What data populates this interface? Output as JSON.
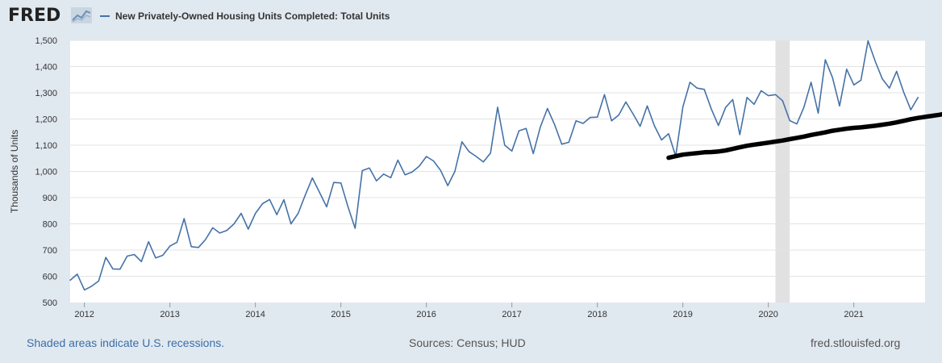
{
  "header": {
    "logo_text": "FRED",
    "legend_label": "New Privately-Owned Housing Units Completed: Total Units"
  },
  "footer": {
    "recession_note": "Shaded areas indicate U.S. recessions.",
    "sources": "Sources: Census; HUD",
    "site": "fred.stlouisfed.org"
  },
  "chart_data": {
    "type": "line",
    "ylabel": "Thousands of Units",
    "ylim": [
      500,
      1500
    ],
    "y_ticks": [
      500,
      600,
      700,
      800,
      900,
      1000,
      1100,
      1200,
      1300,
      1400,
      1500
    ],
    "y_tick_labels": [
      "500",
      "600",
      "700",
      "800",
      "900",
      "1,000",
      "1,100",
      "1,200",
      "1,300",
      "1,400",
      "1,500"
    ],
    "x_range": [
      "2011-11",
      "2021-11"
    ],
    "x_ticks": [
      "2012",
      "2013",
      "2014",
      "2015",
      "2016",
      "2017",
      "2018",
      "2019",
      "2020",
      "2021"
    ],
    "grid": true,
    "recessions": [
      {
        "start": "2020-02",
        "end": "2020-04"
      }
    ],
    "series": [
      {
        "name": "New Privately-Owned Housing Units Completed: Total Units",
        "color": "#4572a7",
        "start": "2011-11",
        "frequency": "monthly",
        "values": [
          585,
          608,
          548,
          562,
          582,
          672,
          628,
          627,
          677,
          683,
          656,
          732,
          670,
          680,
          715,
          730,
          820,
          713,
          710,
          740,
          785,
          765,
          775,
          800,
          840,
          780,
          840,
          877,
          893,
          835,
          892,
          800,
          840,
          910,
          975,
          920,
          865,
          958,
          956,
          865,
          783,
          1003,
          1013,
          964,
          990,
          976,
          1043,
          987,
          998,
          1020,
          1057,
          1040,
          1004,
          946,
          1000,
          1113,
          1075,
          1057,
          1036,
          1070,
          1245,
          1100,
          1078,
          1155,
          1164,
          1068,
          1170,
          1240,
          1178,
          1104,
          1111,
          1193,
          1183,
          1206,
          1207,
          1293,
          1193,
          1215,
          1265,
          1220,
          1172,
          1250,
          1175,
          1120,
          1144,
          1058,
          1246,
          1340,
          1318,
          1313,
          1238,
          1175,
          1244,
          1274,
          1140,
          1282,
          1256,
          1308,
          1289,
          1293,
          1270,
          1194,
          1181,
          1245,
          1340,
          1222,
          1426,
          1358,
          1250,
          1390,
          1330,
          1348,
          1498,
          1420,
          1353,
          1318,
          1382,
          1302,
          1235,
          1282
        ]
      },
      {
        "name": "",
        "color": "#000000",
        "start": "2018-11",
        "frequency": "monthly",
        "values": [
          1052,
          1058,
          1064,
          1067,
          1070,
          1073,
          1074,
          1076,
          1080,
          1086,
          1092,
          1098,
          1102,
          1106,
          1110,
          1114,
          1118,
          1123,
          1128,
          1133,
          1139,
          1144,
          1149,
          1155,
          1159,
          1163,
          1166,
          1168,
          1171,
          1174,
          1178,
          1182,
          1187,
          1193,
          1199,
          1204,
          1208,
          1212,
          1216,
          1221,
          1230
        ]
      }
    ]
  }
}
